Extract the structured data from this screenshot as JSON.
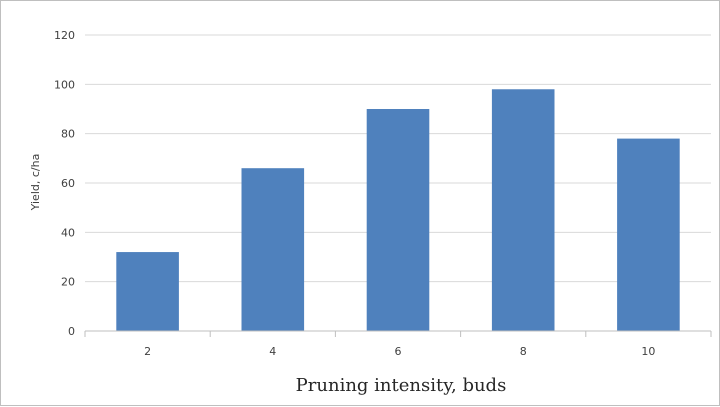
{
  "chart_data": {
    "type": "bar",
    "categories": [
      "2",
      "4",
      "6",
      "8",
      "10"
    ],
    "values": [
      32,
      66,
      90,
      98,
      78
    ],
    "title": "",
    "xlabel": "Pruning intensity, buds",
    "ylabel": "Yield, c/ha",
    "ylim": [
      0,
      120
    ],
    "yticks": [
      0,
      20,
      40,
      60,
      80,
      100,
      120
    ],
    "grid": "horizontal",
    "legend": "none",
    "bar_color": "#4f81bd",
    "grid_color": "#d9d9d9"
  }
}
